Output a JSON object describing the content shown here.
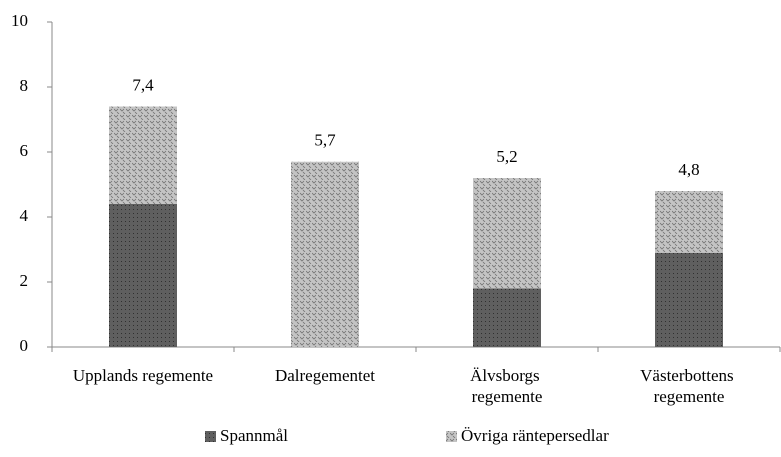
{
  "chart_data": {
    "type": "stacked_bar",
    "categories": [
      "Upplands regemente",
      "Dalregementet",
      "Älvsborgs regemente",
      "Västerbottens regemente"
    ],
    "series": [
      {
        "name": "Spannmål",
        "color": "#5f5f5f",
        "values": [
          4.4,
          0,
          1.8,
          2.9
        ]
      },
      {
        "name": "Övriga räntepersedlar",
        "color": "#c4c4c4",
        "values": [
          3.0,
          5.7,
          3.4,
          1.9
        ]
      }
    ],
    "totals": [
      7.4,
      5.7,
      5.2,
      4.8
    ],
    "totals_labels": [
      "7,4",
      "5,7",
      "5,2",
      "4,8"
    ],
    "ylim": [
      0,
      10
    ],
    "yticks": [
      0,
      2,
      4,
      6,
      8,
      10
    ],
    "legend": "bottom"
  }
}
